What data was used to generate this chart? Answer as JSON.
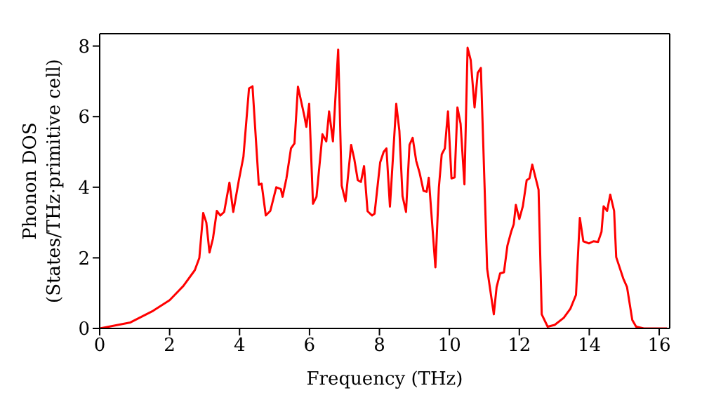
{
  "chart_data": {
    "type": "line",
    "xlabel": "Frequency (THz)",
    "ylabel": "Phonon DOS\n(States/THz·primitive cell)",
    "x": [
      0,
      0.88,
      1.53,
      2.0,
      2.39,
      2.72,
      2.85,
      2.96,
      3.05,
      3.14,
      3.24,
      3.35,
      3.45,
      3.56,
      3.71,
      3.82,
      3.98,
      4.11,
      4.27,
      4.37,
      4.55,
      4.63,
      4.75,
      4.88,
      5.05,
      5.18,
      5.23,
      5.34,
      5.47,
      5.57,
      5.67,
      5.85,
      5.91,
      5.99,
      6.1,
      6.2,
      6.37,
      6.48,
      6.56,
      6.67,
      6.82,
      6.92,
      7.03,
      7.19,
      7.28,
      7.38,
      7.47,
      7.56,
      7.66,
      7.79,
      7.86,
      8.02,
      8.12,
      8.2,
      8.3,
      8.48,
      8.57,
      8.66,
      8.76,
      8.86,
      8.95,
      9.05,
      9.15,
      9.26,
      9.35,
      9.41,
      9.6,
      9.7,
      9.78,
      9.87,
      9.96,
      10.06,
      10.15,
      10.23,
      10.32,
      10.43,
      10.52,
      10.61,
      10.72,
      10.81,
      10.9,
      11.08,
      11.27,
      11.35,
      11.45,
      11.56,
      11.66,
      11.77,
      11.84,
      11.9,
      12.0,
      12.1,
      12.21,
      12.29,
      12.37,
      12.55,
      12.64,
      12.81,
      13.01,
      13.27,
      13.46,
      13.62,
      13.73,
      13.83,
      13.99,
      14.12,
      14.25,
      14.35,
      14.41,
      14.51,
      14.6,
      14.71,
      14.77,
      14.97,
      15.08,
      15.23,
      15.34,
      15.56,
      16.22
    ],
    "series": [
      {
        "color": "#ff0000",
        "values": [
          0,
          0.17,
          0.5,
          0.8,
          1.2,
          1.65,
          2.0,
          3.27,
          3.0,
          2.15,
          2.55,
          3.33,
          3.2,
          3.3,
          4.13,
          3.3,
          4.2,
          4.86,
          6.8,
          6.86,
          4.07,
          4.1,
          3.2,
          3.33,
          4.0,
          3.95,
          3.73,
          4.25,
          5.1,
          5.24,
          6.85,
          6.03,
          5.71,
          6.36,
          3.53,
          3.73,
          5.5,
          5.3,
          6.15,
          5.3,
          7.9,
          4.05,
          3.6,
          5.2,
          4.8,
          4.2,
          4.15,
          4.6,
          3.32,
          3.2,
          3.25,
          4.7,
          5.0,
          5.1,
          3.45,
          6.36,
          5.6,
          3.75,
          3.3,
          5.2,
          5.4,
          4.75,
          4.4,
          3.9,
          3.87,
          4.27,
          1.73,
          4.0,
          4.93,
          5.1,
          6.15,
          4.25,
          4.28,
          6.26,
          5.8,
          4.08,
          7.95,
          7.6,
          6.26,
          7.24,
          7.38,
          1.69,
          0.4,
          1.17,
          1.56,
          1.59,
          2.35,
          2.75,
          2.95,
          3.5,
          3.1,
          3.46,
          4.2,
          4.25,
          4.64,
          3.93,
          0.4,
          0.05,
          0.1,
          0.3,
          0.56,
          0.95,
          3.13,
          2.47,
          2.41,
          2.47,
          2.45,
          2.74,
          3.46,
          3.33,
          3.79,
          3.33,
          2.02,
          1.42,
          1.17,
          0.24,
          0.05,
          0,
          0
        ]
      }
    ],
    "xlim": [
      0,
      16.3
    ],
    "xticks": [
      0,
      2,
      4,
      6,
      8,
      10,
      12,
      14,
      16
    ],
    "ylim": [
      0,
      8.35
    ],
    "yticks": [
      0,
      2,
      4,
      6,
      8
    ],
    "grid": false,
    "legend": false,
    "marker": "none",
    "line_style": "solid"
  }
}
